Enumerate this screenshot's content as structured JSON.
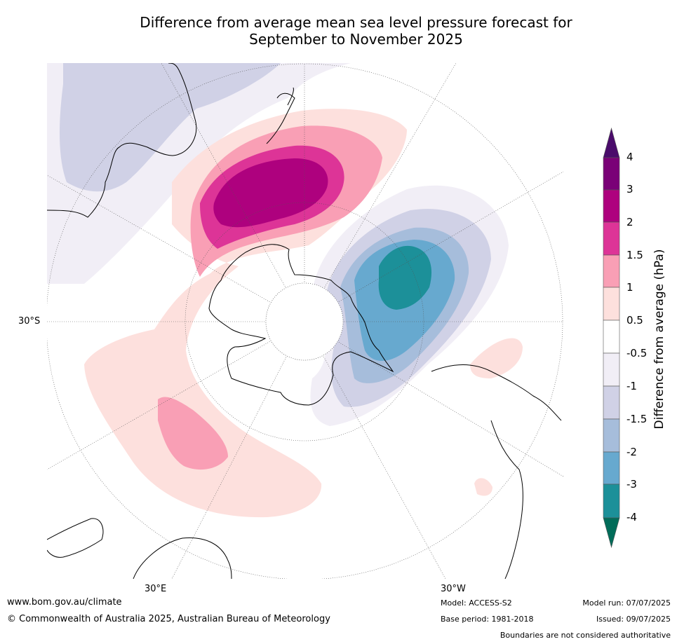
{
  "title_line1": "Difference from average mean sea level pressure forecast for",
  "title_line2": "September to November 2025",
  "map": {
    "projection": "south-polar stereographic",
    "lat_label": "30°S",
    "lon_labels": [
      "30°E",
      "30°W"
    ]
  },
  "colorbar": {
    "title": "Difference from average (hPa)",
    "tick_labels": [
      "4",
      "3",
      "2",
      "1.5",
      "1",
      "0.5",
      "-0.5",
      "-1",
      "-1.5",
      "-2",
      "-3",
      "-4"
    ],
    "colors": {
      "gt4": "#4a0c6b",
      "3_4": "#7a0177",
      "2_3": "#ae017e",
      "1.5_2": "#dd3497",
      "1_1.5": "#f99fb5",
      "0.5_1": "#fde0dd",
      "neutral": "#ffffff",
      "-1_-0.5": "#f1eef6",
      "-1.5_-1": "#d0d1e6",
      "-2_-1.5": "#a6bddb",
      "-3_-2": "#67a9cf",
      "-4_-3": "#1c9099",
      "lt-4": "#016c59"
    }
  },
  "footer": {
    "website": "www.bom.gov.au/climate",
    "copyright": "© Commonwealth of Australia 2025, Australian Bureau of Meteorology",
    "model": "Model: ACCESS-S2",
    "base_period": "Base period: 1981-2018",
    "model_run": "Model run: 07/07/2025",
    "issued": "Issued: 09/07/2025",
    "boundaries_note": "Boundaries are not considered authoritative"
  }
}
